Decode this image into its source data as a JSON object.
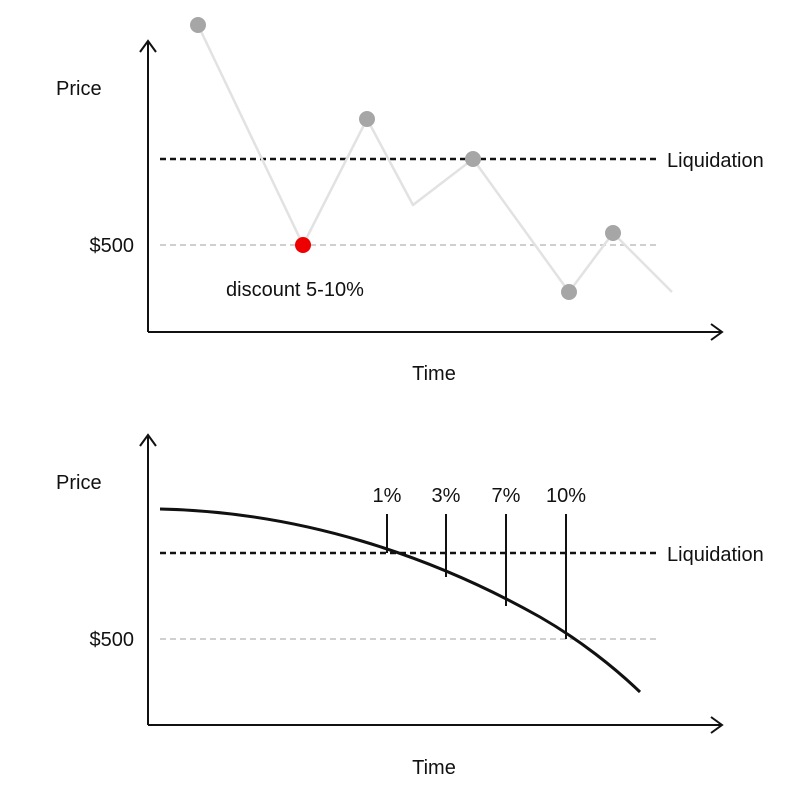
{
  "colors": {
    "axis": "#111111",
    "liquidation_line": "#111111",
    "price_line": "#dcdcdc",
    "ref_line": "#cfcfcf",
    "point": "#a6a6a6",
    "highlight_point": "#ee0000",
    "curve": "#111111"
  },
  "top_panel": {
    "y_axis_label": "Price",
    "x_axis_label": "Time",
    "liquidation_label": "Liquidation",
    "reference_label": "$500",
    "annotation": "discount 5-10%",
    "marker_icons": [
      "circle-marker",
      "circle-marker",
      "circle-marker",
      "circle-marker",
      "circle-marker",
      "circle-marker"
    ]
  },
  "bottom_panel": {
    "y_axis_label": "Price",
    "x_axis_label": "Time",
    "liquidation_label": "Liquidation",
    "reference_label": "$500",
    "discount_steps": [
      {
        "label": "1%"
      },
      {
        "label": "3%"
      },
      {
        "label": "7%"
      },
      {
        "label": "10%"
      }
    ]
  }
}
